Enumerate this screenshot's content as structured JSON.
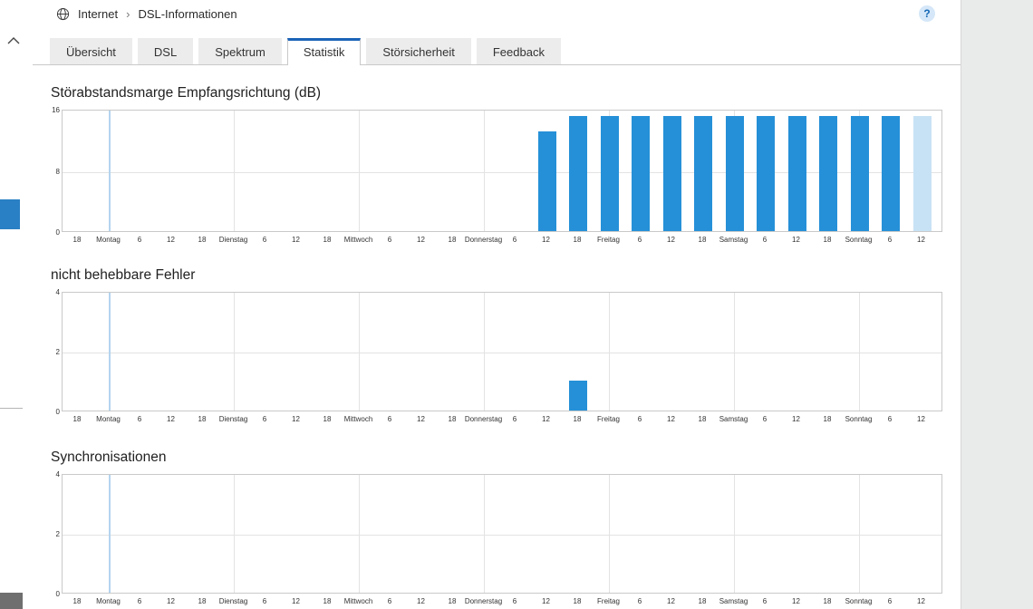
{
  "header": {
    "breadcrumb": [
      "Internet",
      "DSL-Informationen"
    ],
    "separator": "›",
    "help_label": "?"
  },
  "tabs": [
    {
      "label": "Übersicht",
      "active": false
    },
    {
      "label": "DSL",
      "active": false
    },
    {
      "label": "Spektrum",
      "active": false
    },
    {
      "label": "Statistik",
      "active": true
    },
    {
      "label": "Störsicherheit",
      "active": false
    },
    {
      "label": "Feedback",
      "active": false
    }
  ],
  "colors": {
    "accent_blue": "#1c63b8",
    "bar": "#2590d8",
    "bar_current": "#c8e2f5",
    "marker_line": "#b4d4ee",
    "grid": "#e3e3e3",
    "plot_border": "#c9c9c9"
  },
  "chart_data": [
    {
      "type": "bar",
      "title": "Störabstandsmarge Empfangsrichtung (dB)",
      "ylim": [
        0,
        16
      ],
      "yticks": [
        0,
        8,
        16
      ],
      "x_ticklabels": [
        "18",
        "Montag",
        "6",
        "12",
        "18",
        "Dienstag",
        "6",
        "12",
        "18",
        "Mittwoch",
        "6",
        "12",
        "18",
        "Donnerstag",
        "6",
        "12",
        "18",
        "Freitag",
        "6",
        "12",
        "18",
        "Samstag",
        "6",
        "12",
        "18",
        "Sonntag",
        "6",
        "12"
      ],
      "highlight_gridline_at": "Montag",
      "grid": true,
      "legend": "none",
      "bars": [
        {
          "tick": 15,
          "value": 13
        },
        {
          "tick": 16,
          "value": 15
        },
        {
          "tick": 17,
          "value": 15
        },
        {
          "tick": 18,
          "value": 15
        },
        {
          "tick": 19,
          "value": 15
        },
        {
          "tick": 20,
          "value": 15
        },
        {
          "tick": 21,
          "value": 15
        },
        {
          "tick": 22,
          "value": 15
        },
        {
          "tick": 23,
          "value": 15
        },
        {
          "tick": 24,
          "value": 15
        },
        {
          "tick": 25,
          "value": 15
        },
        {
          "tick": 26,
          "value": 15
        },
        {
          "tick": 27,
          "value": 15,
          "current": true
        }
      ]
    },
    {
      "type": "bar",
      "title": "nicht behebbare Fehler",
      "ylim": [
        0,
        4
      ],
      "yticks": [
        0,
        2,
        4
      ],
      "x_ticklabels": [
        "18",
        "Montag",
        "6",
        "12",
        "18",
        "Dienstag",
        "6",
        "12",
        "18",
        "Mittwoch",
        "6",
        "12",
        "18",
        "Donnerstag",
        "6",
        "12",
        "18",
        "Freitag",
        "6",
        "12",
        "18",
        "Samstag",
        "6",
        "12",
        "18",
        "Sonntag",
        "6",
        "12"
      ],
      "highlight_gridline_at": "Montag",
      "grid": true,
      "legend": "none",
      "bars": [
        {
          "tick": 16,
          "value": 1
        }
      ]
    },
    {
      "type": "bar",
      "title": "Synchronisationen",
      "ylim": [
        0,
        4
      ],
      "yticks": [
        0,
        2,
        4
      ],
      "x_ticklabels": [
        "18",
        "Montag",
        "6",
        "12",
        "18",
        "Dienstag",
        "6",
        "12",
        "18",
        "Mittwoch",
        "6",
        "12",
        "18",
        "Donnerstag",
        "6",
        "12",
        "18",
        "Freitag",
        "6",
        "12",
        "18",
        "Samstag",
        "6",
        "12",
        "18",
        "Sonntag",
        "6",
        "12"
      ],
      "highlight_gridline_at": "Montag",
      "grid": true,
      "legend": "none",
      "bars": []
    }
  ]
}
